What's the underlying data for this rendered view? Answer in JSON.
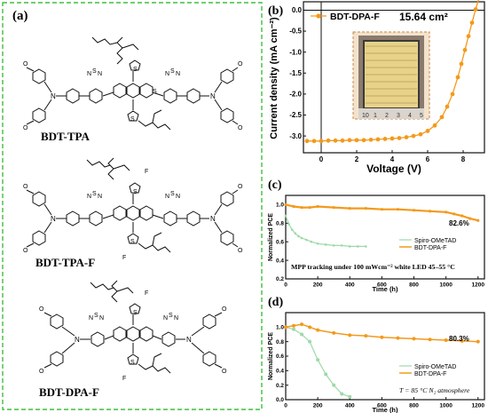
{
  "panel_a": {
    "label": "(a)",
    "molecules": [
      {
        "name": "BDT-TPA"
      },
      {
        "name": "BDT-TPA-F"
      },
      {
        "name": "BDT-DPA-F"
      }
    ],
    "atoms": {
      "O": "O",
      "N": "N",
      "S": "S",
      "F": "F"
    }
  },
  "chart_data": [
    {
      "panel": "(b)",
      "type": "line",
      "xlabel": "Voltage (V)",
      "ylabel": "Current density (mA cm⁻²)",
      "xlim": [
        -1,
        9.2
      ],
      "ylim": [
        -3.4,
        0.2
      ],
      "xticks": [
        "0",
        "2",
        "4",
        "6",
        "8"
      ],
      "yticks": [
        "0.0",
        "-0.5",
        "-1.0",
        "-1.5",
        "-2.0",
        "-2.5",
        "-3.0"
      ],
      "series": [
        {
          "name": "BDT-DPA-F",
          "color": "#f39a1c",
          "x": [
            -0.8,
            -0.4,
            0,
            0.4,
            0.8,
            1.2,
            1.6,
            2.0,
            2.4,
            2.8,
            3.2,
            3.6,
            4.0,
            4.4,
            4.8,
            5.2,
            5.6,
            6.0,
            6.4,
            6.8,
            7.1,
            7.4,
            7.7,
            7.9,
            8.1,
            8.3,
            8.5,
            8.7,
            8.9
          ],
          "y": [
            -3.12,
            -3.12,
            -3.12,
            -3.11,
            -3.11,
            -3.11,
            -3.1,
            -3.1,
            -3.1,
            -3.09,
            -3.08,
            -3.07,
            -3.06,
            -3.05,
            -3.03,
            -3.0,
            -2.96,
            -2.88,
            -2.75,
            -2.55,
            -2.3,
            -2.0,
            -1.6,
            -1.28,
            -0.95,
            -0.62,
            -0.3,
            0.02,
            0.3
          ]
        }
      ],
      "annotation": "15.64 cm²",
      "inset_ruler_labels": [
        "10",
        "1",
        "2",
        "3",
        "4",
        "5"
      ],
      "legend": "top-left",
      "grid": false
    },
    {
      "panel": "(c)",
      "type": "line",
      "xlabel": "Time (h)",
      "ylabel": "Normalized PCE",
      "xlim": [
        0,
        1240
      ],
      "ylim": [
        0.2,
        1.1
      ],
      "xticks": [
        "0",
        "200",
        "400",
        "600",
        "800",
        "1000",
        "1200"
      ],
      "yticks": [
        "0.2",
        "0.4",
        "0.6",
        "0.8",
        "1.0"
      ],
      "series": [
        {
          "name": "Spiro-OMeTAD",
          "color": "#9ed9a8",
          "x": [
            0,
            20,
            40,
            60,
            80,
            100,
            130,
            160,
            200,
            250,
            300,
            350,
            400,
            450,
            500
          ],
          "y": [
            0.88,
            0.79,
            0.73,
            0.69,
            0.66,
            0.64,
            0.62,
            0.6,
            0.58,
            0.57,
            0.56,
            0.56,
            0.55,
            0.55,
            0.55
          ]
        },
        {
          "name": "BDT-DPA-F",
          "color": "#f39a1c",
          "x": [
            0,
            50,
            100,
            150,
            200,
            300,
            400,
            500,
            600,
            700,
            800,
            900,
            1000,
            1050,
            1100,
            1150,
            1200
          ],
          "y": [
            1.0,
            0.98,
            0.97,
            0.97,
            0.98,
            0.97,
            0.96,
            0.96,
            0.95,
            0.95,
            0.94,
            0.93,
            0.92,
            0.9,
            0.88,
            0.85,
            0.83
          ]
        }
      ],
      "annotations": [
        "82.6%",
        "MPP tracking under 100 mWcm⁻² white LED 45–55 °C"
      ],
      "legend": "bottom-right",
      "grid": false
    },
    {
      "panel": "(d)",
      "type": "line",
      "xlabel": "Time (h)",
      "ylabel": "Normalized PCE",
      "xlim": [
        0,
        1240
      ],
      "ylim": [
        0.0,
        1.2
      ],
      "xticks": [
        "0",
        "200",
        "400",
        "600",
        "800",
        "1000",
        "1200"
      ],
      "yticks": [
        "0.0",
        "0.2",
        "0.4",
        "0.6",
        "0.8",
        "1.0"
      ],
      "series": [
        {
          "name": "Spiro-OMeTAD",
          "color": "#9ed9a8",
          "x": [
            0,
            50,
            100,
            150,
            200,
            250,
            300,
            350,
            400
          ],
          "y": [
            1.0,
            0.97,
            0.9,
            0.8,
            0.55,
            0.35,
            0.2,
            0.08,
            0.04
          ]
        },
        {
          "name": "BDT-DPA-F",
          "color": "#f39a1c",
          "x": [
            0,
            50,
            100,
            150,
            200,
            300,
            400,
            500,
            600,
            700,
            800,
            900,
            1000,
            1100,
            1200
          ],
          "y": [
            1.0,
            1.02,
            1.04,
            1.0,
            0.96,
            0.92,
            0.89,
            0.88,
            0.86,
            0.85,
            0.84,
            0.83,
            0.82,
            0.81,
            0.8
          ]
        }
      ],
      "annotations": [
        "80.3%",
        "T = 85 °C N₂ atmosphere"
      ],
      "legend": "bottom-right",
      "grid": false
    }
  ]
}
